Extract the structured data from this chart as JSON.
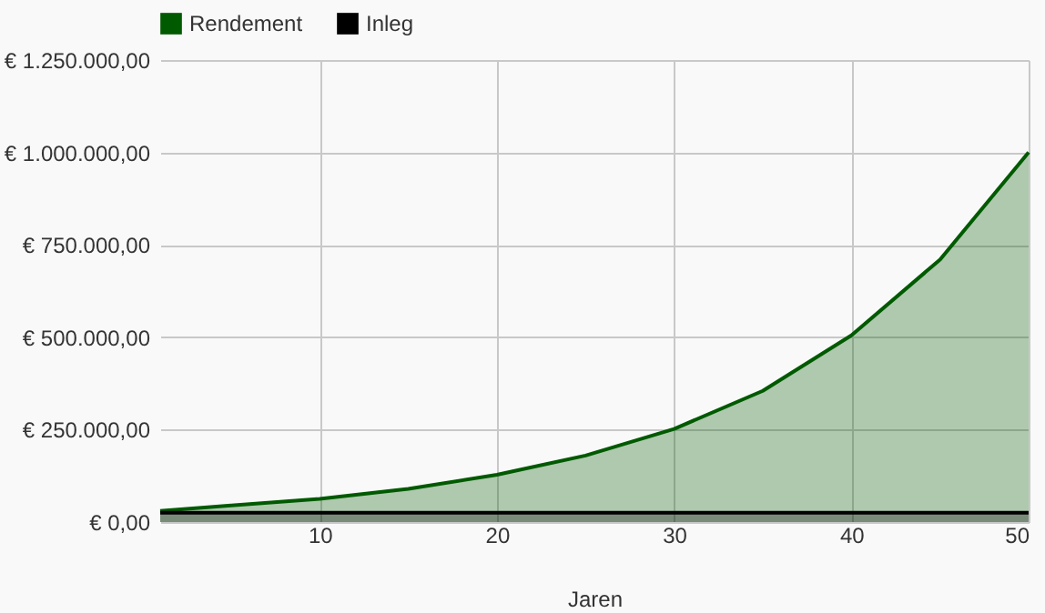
{
  "chart_data": {
    "type": "area",
    "xlabel": "Jaren",
    "x": [
      1,
      5,
      10,
      15,
      20,
      25,
      30,
      35,
      40,
      45,
      50
    ],
    "series": [
      {
        "name": "Rendement",
        "color": "#005a00",
        "values": [
          30000,
          45000,
          63000,
          90000,
          128000,
          180000,
          252000,
          355000,
          505000,
          710000,
          1000000
        ]
      },
      {
        "name": "Inleg",
        "color": "#000000",
        "values": [
          25000,
          25000,
          25000,
          25000,
          25000,
          25000,
          25000,
          25000,
          25000,
          25000,
          25000
        ]
      }
    ],
    "xlim": [
      1,
      50
    ],
    "xticks": [
      10,
      20,
      30,
      40,
      50
    ],
    "ylim": [
      0,
      1250000
    ],
    "yticks": [
      {
        "value": 0,
        "label": "€ 0,00"
      },
      {
        "value": 250000,
        "label": "€ 250.000,00"
      },
      {
        "value": 500000,
        "label": "€ 500.000,00"
      },
      {
        "value": 750000,
        "label": "€ 750.000,00"
      },
      {
        "value": 1000000,
        "label": "€ 1.000.000,00"
      },
      {
        "value": 1250000,
        "label": "€ 1.250.000,00"
      }
    ],
    "grid": true,
    "legend": "top"
  }
}
